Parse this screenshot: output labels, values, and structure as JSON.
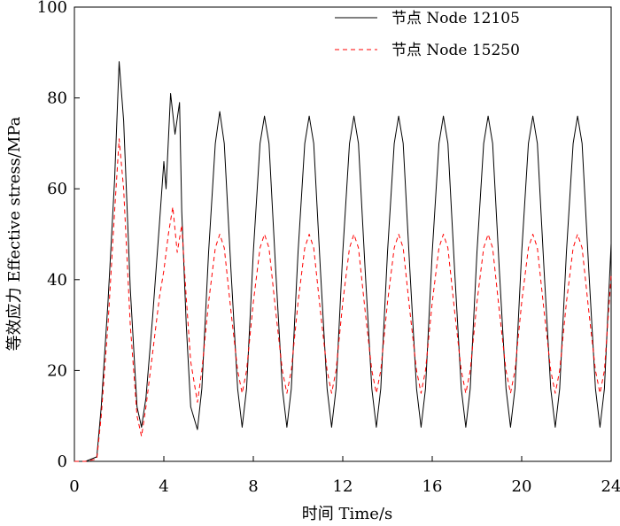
{
  "chart_data": {
    "type": "line",
    "xlabel": "时间 Time/s",
    "ylabel": "等效应力 Effective stress/MPa",
    "xlim": [
      0,
      24
    ],
    "ylim": [
      0,
      100
    ],
    "xticks": [
      0,
      4,
      8,
      12,
      16,
      20,
      24
    ],
    "yticks": [
      0,
      20,
      40,
      60,
      80,
      100
    ],
    "grid": false,
    "legend_position": "top-right",
    "series": [
      {
        "name": "节点 Node 12105",
        "color": "#000000",
        "dash": "solid",
        "x": [
          0,
          0.5,
          1.0,
          1.2,
          1.5,
          1.8,
          2.0,
          2.2,
          2.5,
          2.8,
          3.0,
          3.2,
          3.5,
          3.8,
          4.0,
          4.1,
          4.3,
          4.5,
          4.7,
          4.8,
          5.0,
          5.2,
          5.5,
          5.7,
          6.0,
          6.3,
          6.5,
          6.7,
          7.0,
          7.3,
          7.5,
          7.7,
          8.0,
          8.3,
          8.5,
          8.7,
          9.0,
          9.3,
          9.5,
          9.7,
          10.0,
          10.3,
          10.5,
          10.7,
          11.0,
          11.3,
          11.5,
          11.7,
          12.0,
          12.3,
          12.5,
          12.7,
          13.0,
          13.3,
          13.5,
          13.7,
          14.0,
          14.3,
          14.5,
          14.7,
          15.0,
          15.3,
          15.5,
          15.7,
          16.0,
          16.3,
          16.5,
          16.7,
          17.0,
          17.3,
          17.5,
          17.7,
          18.0,
          18.3,
          18.5,
          18.7,
          19.0,
          19.3,
          19.5,
          19.7,
          20.0,
          20.3,
          20.5,
          20.7,
          21.0,
          21.3,
          21.5,
          21.7,
          22.0,
          22.3,
          22.5,
          22.7,
          23.0,
          23.3,
          23.5,
          23.7,
          24.0
        ],
        "y": [
          0,
          0,
          1,
          12,
          35,
          62,
          88,
          75,
          38,
          12,
          7.5,
          14,
          32,
          52,
          66,
          60,
          81,
          72,
          79,
          55,
          30,
          12,
          7,
          16,
          46,
          70,
          77,
          70,
          42,
          16,
          7.5,
          16,
          46,
          70,
          76,
          70,
          42,
          16,
          7.5,
          16,
          46,
          70,
          76,
          70,
          42,
          16,
          7.5,
          16,
          46,
          70,
          76,
          70,
          42,
          16,
          7.5,
          16,
          46,
          70,
          76,
          70,
          42,
          16,
          7.5,
          16,
          46,
          70,
          76,
          70,
          42,
          16,
          7.5,
          16,
          46,
          70,
          76,
          70,
          42,
          16,
          7.5,
          16,
          46,
          70,
          76,
          70,
          42,
          16,
          7.5,
          16,
          46,
          70,
          76,
          70,
          42,
          16,
          7.5,
          16,
          48
        ]
      },
      {
        "name": "节点 Node 15250",
        "color": "#ff0000",
        "dash": "dashed",
        "x": [
          0,
          0.5,
          1.0,
          1.2,
          1.5,
          1.8,
          2.0,
          2.2,
          2.5,
          2.8,
          3.0,
          3.2,
          3.5,
          3.8,
          4.0,
          4.2,
          4.4,
          4.6,
          4.8,
          5.0,
          5.2,
          5.5,
          5.7,
          6.0,
          6.3,
          6.5,
          6.7,
          7.0,
          7.3,
          7.5,
          7.7,
          8.0,
          8.3,
          8.5,
          8.7,
          9.0,
          9.3,
          9.5,
          9.7,
          10.0,
          10.3,
          10.5,
          10.7,
          11.0,
          11.3,
          11.5,
          11.7,
          12.0,
          12.3,
          12.5,
          12.7,
          13.0,
          13.3,
          13.5,
          13.7,
          14.0,
          14.3,
          14.5,
          14.7,
          15.0,
          15.3,
          15.5,
          15.7,
          16.0,
          16.3,
          16.5,
          16.7,
          17.0,
          17.3,
          17.5,
          17.7,
          18.0,
          18.3,
          18.5,
          18.7,
          19.0,
          19.3,
          19.5,
          19.7,
          20.0,
          20.3,
          20.5,
          20.7,
          21.0,
          21.3,
          21.5,
          21.7,
          22.0,
          22.3,
          22.5,
          22.7,
          23.0,
          23.3,
          23.5,
          23.7,
          24.0
        ],
        "y": [
          0,
          0,
          0.5,
          10,
          30,
          55,
          71,
          60,
          30,
          10,
          5.5,
          12,
          24,
          36,
          42,
          50,
          56,
          46,
          52,
          36,
          22,
          13,
          20,
          35,
          47,
          50,
          47,
          33,
          20,
          15,
          20,
          35,
          47,
          50,
          47,
          33,
          20,
          15,
          20,
          35,
          47,
          50,
          47,
          33,
          20,
          15,
          20,
          35,
          47,
          50,
          47,
          33,
          20,
          15,
          20,
          35,
          47,
          50,
          47,
          33,
          20,
          15,
          20,
          35,
          47,
          50,
          47,
          33,
          20,
          15,
          20,
          35,
          47,
          50,
          47,
          33,
          20,
          15,
          20,
          35,
          47,
          50,
          47,
          33,
          20,
          15,
          20,
          35,
          47,
          50,
          47,
          33,
          20,
          15,
          20,
          41
        ]
      }
    ]
  }
}
